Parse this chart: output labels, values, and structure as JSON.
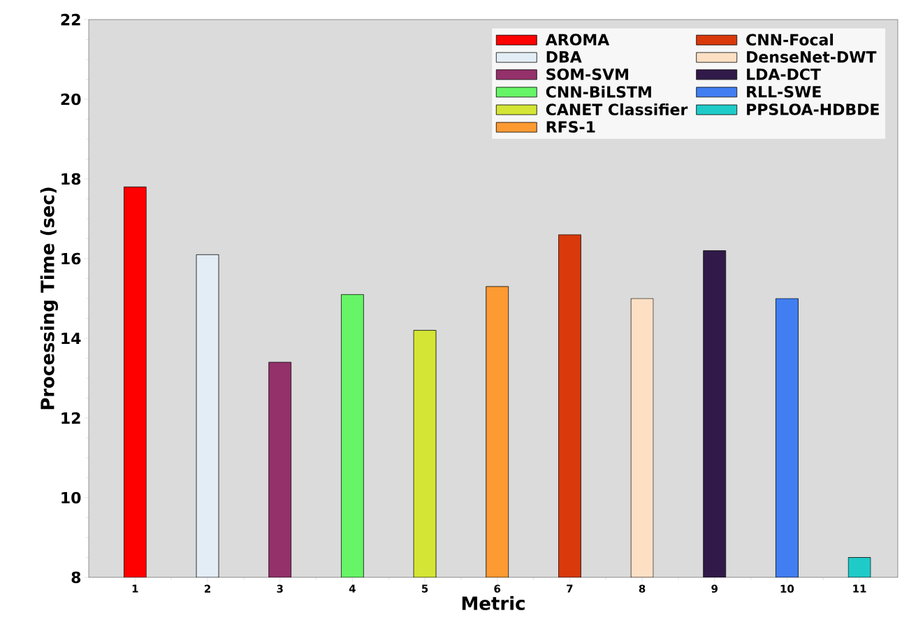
{
  "chart_data": {
    "type": "bar",
    "xlabel": "Metric",
    "ylabel": "Processing Time (sec)",
    "categories": [
      "1",
      "2",
      "3",
      "4",
      "5",
      "6",
      "7",
      "8",
      "9",
      "10",
      "11"
    ],
    "series": [
      {
        "name": "AROMA",
        "color": "#ff0000",
        "values": [
          17.8,
          null,
          null,
          null,
          null,
          null,
          null,
          null,
          null,
          null,
          null
        ]
      },
      {
        "name": "DBA",
        "color": "#e3edf5",
        "values": [
          null,
          16.1,
          null,
          null,
          null,
          null,
          null,
          null,
          null,
          null,
          null
        ]
      },
      {
        "name": "SOM-SVM",
        "color": "#94306a",
        "values": [
          null,
          null,
          13.4,
          null,
          null,
          null,
          null,
          null,
          null,
          null,
          null
        ]
      },
      {
        "name": "CNN-BiLSTM",
        "color": "#66f566",
        "values": [
          null,
          null,
          null,
          15.1,
          null,
          null,
          null,
          null,
          null,
          null,
          null
        ]
      },
      {
        "name": "CANET Classifier",
        "color": "#d4e535",
        "values": [
          null,
          null,
          null,
          null,
          14.2,
          null,
          null,
          null,
          null,
          null,
          null
        ]
      },
      {
        "name": "RFS-1",
        "color": "#fd9a32",
        "values": [
          null,
          null,
          null,
          null,
          null,
          15.3,
          null,
          null,
          null,
          null,
          null
        ]
      },
      {
        "name": "CNN-Focal",
        "color": "#d9390b",
        "values": [
          null,
          null,
          null,
          null,
          null,
          null,
          16.6,
          null,
          null,
          null,
          null
        ]
      },
      {
        "name": "DenseNet-DWT",
        "color": "#fde0c4",
        "values": [
          null,
          null,
          null,
          null,
          null,
          null,
          null,
          15.0,
          null,
          null,
          null
        ]
      },
      {
        "name": "LDA-DCT",
        "color": "#311a49",
        "values": [
          null,
          null,
          null,
          null,
          null,
          null,
          null,
          null,
          16.2,
          null,
          null
        ]
      },
      {
        "name": "RLL-SWE",
        "color": "#417ef1",
        "values": [
          null,
          null,
          null,
          null,
          null,
          null,
          null,
          null,
          null,
          15.0,
          null
        ]
      },
      {
        "name": "PPSLOA-HDBDE",
        "color": "#1fcbc8",
        "values": [
          null,
          null,
          null,
          null,
          null,
          null,
          null,
          null,
          null,
          null,
          8.5
        ]
      }
    ],
    "ylim": [
      8,
      22
    ],
    "yticks": [
      8,
      10,
      12,
      14,
      16,
      18,
      20,
      22
    ],
    "legend": "top right"
  }
}
